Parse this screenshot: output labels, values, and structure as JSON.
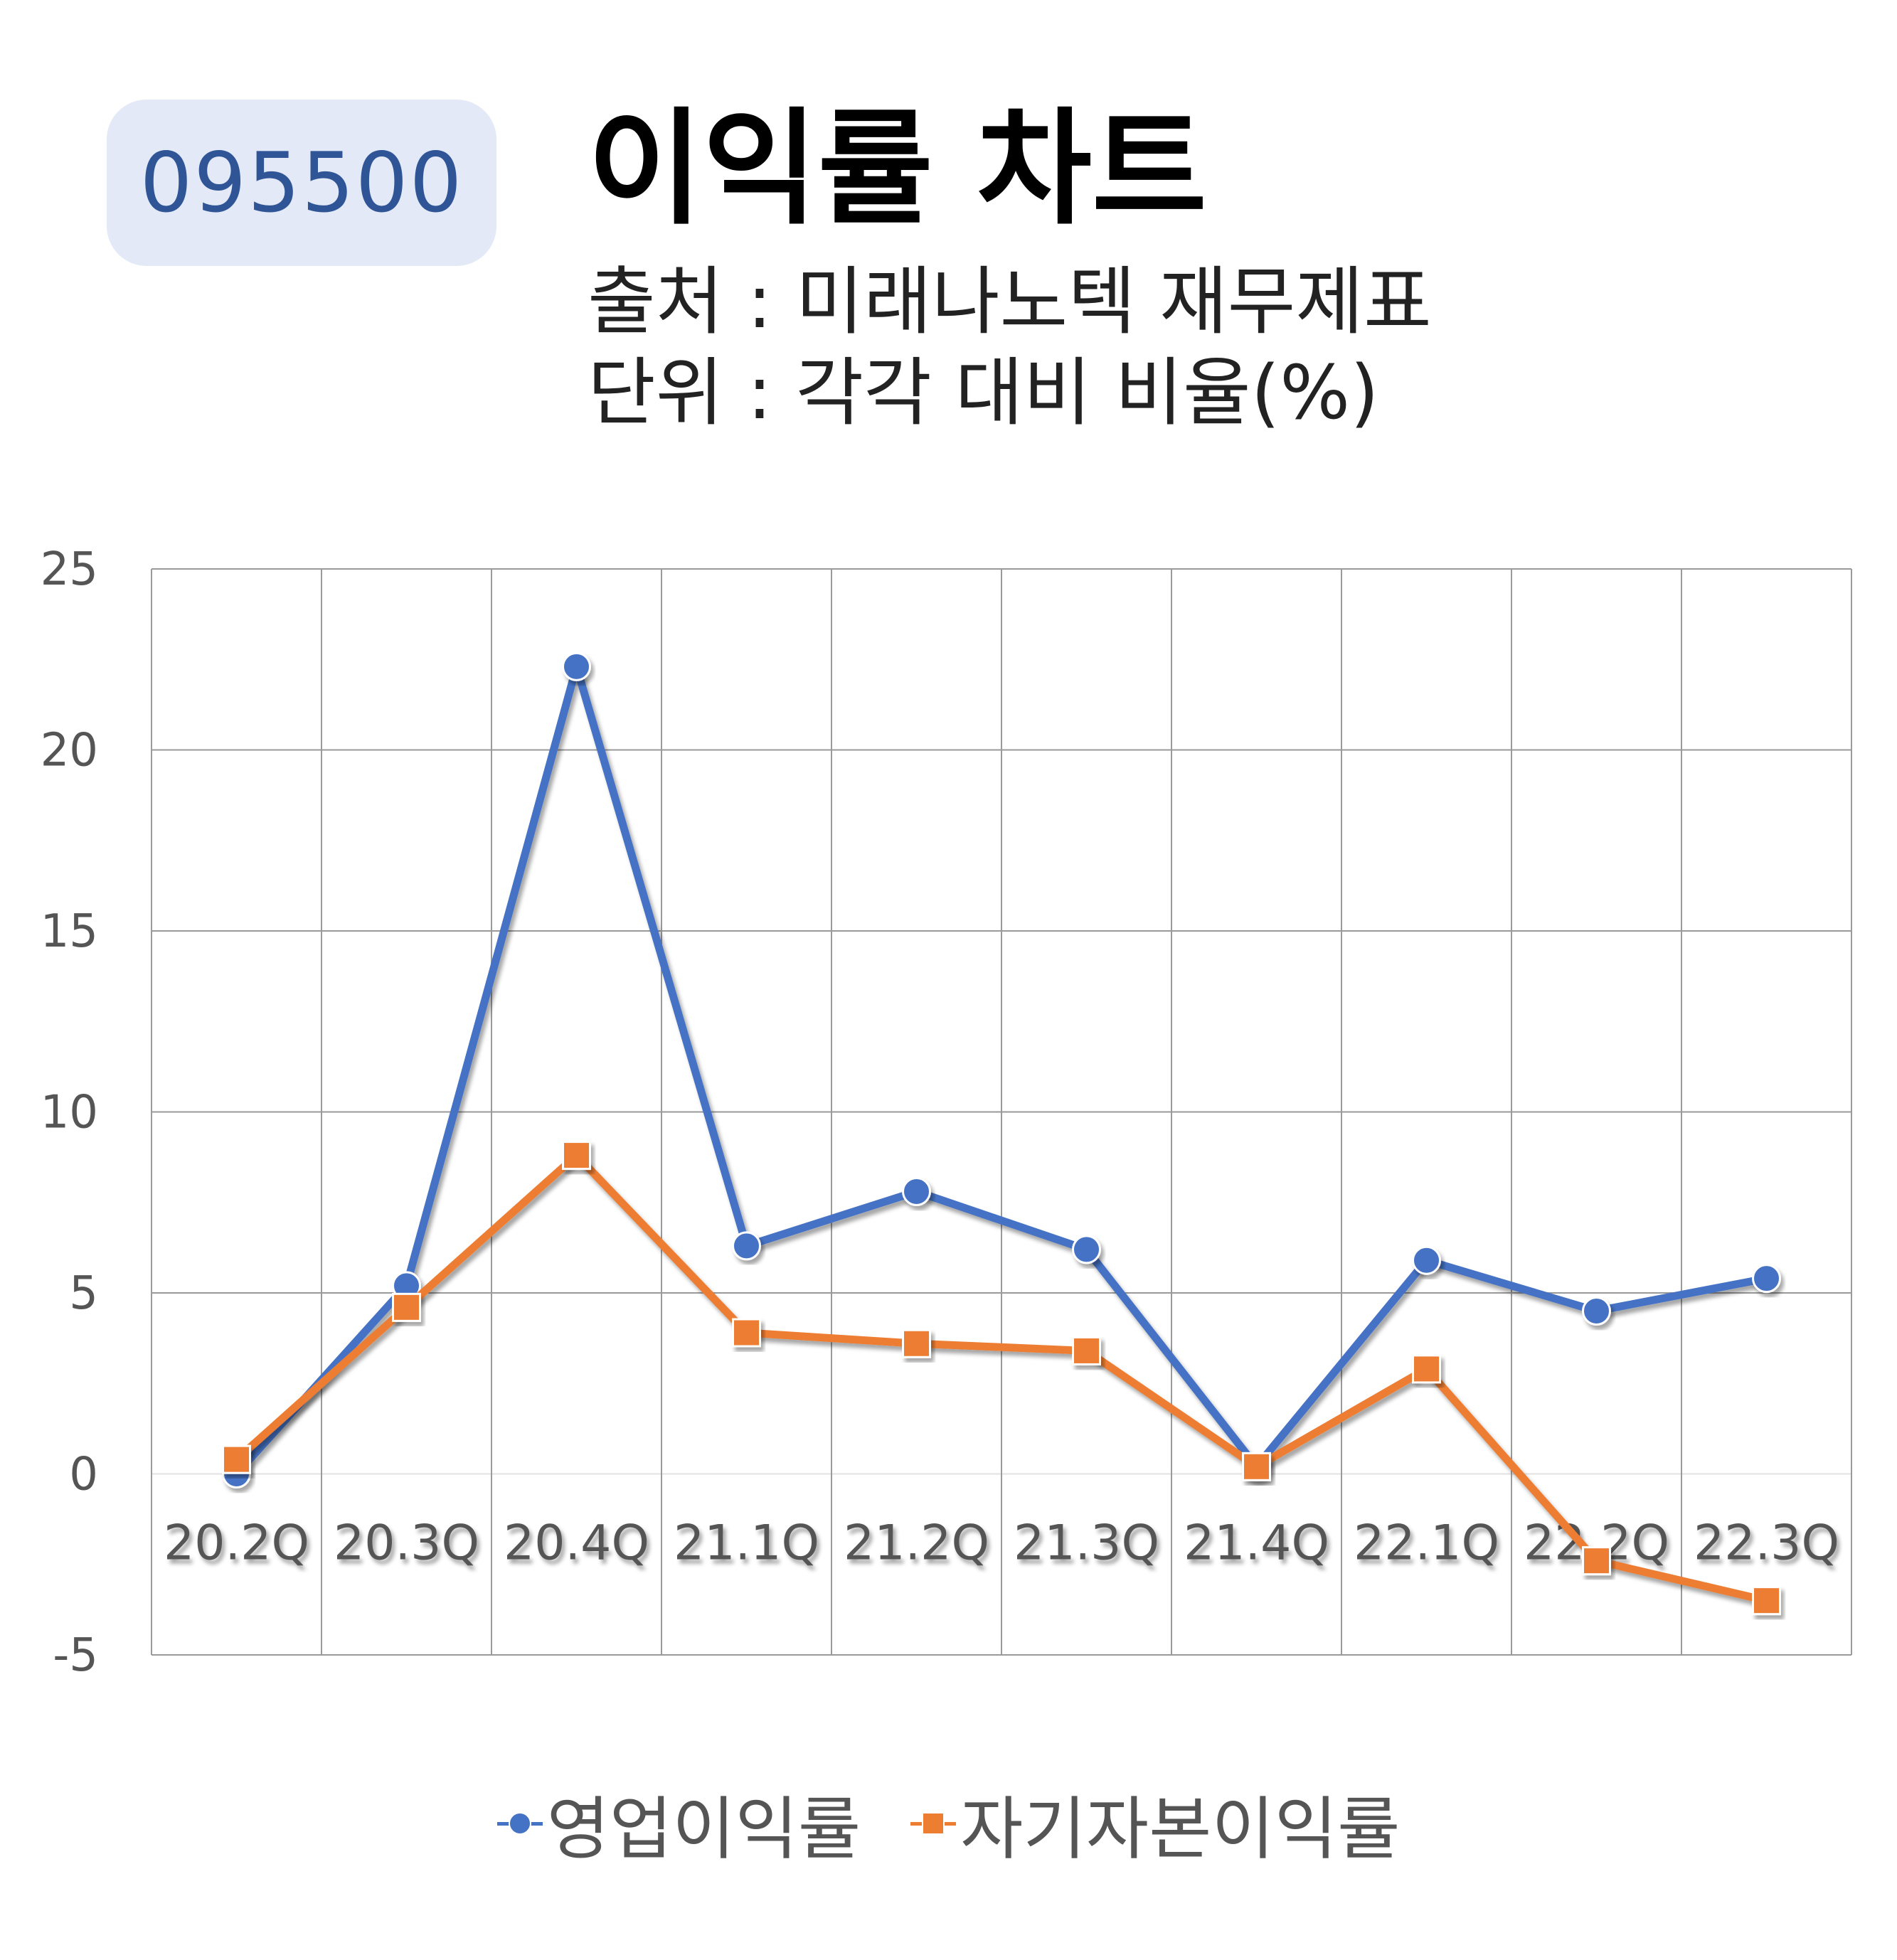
{
  "header": {
    "code": "095500",
    "title": "이익률 차트",
    "source_line": "출처 : 미래나노텍 재무제표",
    "unit_line": "단위 : 각각 대비 비율(%)"
  },
  "chart_data": {
    "type": "line",
    "categories": [
      "20.2Q",
      "20.3Q",
      "20.4Q",
      "21.1Q",
      "21.2Q",
      "21.3Q",
      "21.4Q",
      "22.1Q",
      "22.2Q",
      "22.3Q"
    ],
    "series": [
      {
        "name": "영업이익률",
        "color": "#4472c4",
        "marker": "circle",
        "values": [
          0.0,
          5.2,
          22.3,
          6.3,
          7.8,
          6.2,
          0.2,
          5.9,
          4.5,
          5.4
        ]
      },
      {
        "name": "자기자본이익률",
        "color": "#ed7d31",
        "marker": "square",
        "values": [
          0.4,
          4.6,
          8.8,
          3.9,
          3.6,
          3.4,
          0.2,
          2.9,
          -2.4,
          -3.5
        ]
      }
    ],
    "ylim": [
      -5,
      25
    ],
    "yticks": [
      -5,
      0,
      5,
      10,
      15,
      20,
      25
    ],
    "grid": true,
    "legend_position": "bottom"
  }
}
